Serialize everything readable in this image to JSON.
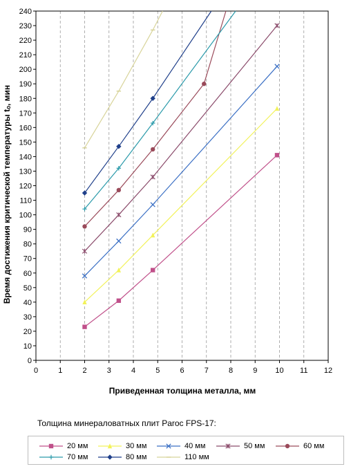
{
  "chart_data": {
    "type": "line",
    "title": "",
    "xlabel": "Приведенная толщина металла, мм",
    "ylabel": "Время достижения критической температуры tₒ, мин",
    "xlim": [
      0,
      12
    ],
    "ylim": [
      0,
      240
    ],
    "x_ticks": [
      0,
      1,
      2,
      3,
      4,
      5,
      6,
      7,
      8,
      9,
      10,
      11,
      12
    ],
    "y_ticks": [
      0,
      10,
      20,
      30,
      40,
      50,
      60,
      70,
      80,
      90,
      100,
      110,
      120,
      130,
      140,
      150,
      160,
      170,
      180,
      190,
      200,
      210,
      220,
      230,
      240
    ],
    "grid": "vertical dashed",
    "legend_position": "bottom",
    "series": [
      {
        "name": "20 мм",
        "color": "#c0508a",
        "marker": "square",
        "x": [
          2,
          3.4,
          4.8,
          9.9
        ],
        "y": [
          23,
          41,
          62,
          141
        ]
      },
      {
        "name": "30 мм",
        "color": "#f2f25a",
        "marker": "triangle",
        "x": [
          2,
          3.4,
          4.8,
          9.9
        ],
        "y": [
          40,
          62,
          86,
          173
        ]
      },
      {
        "name": "40 мм",
        "color": "#3a6fc4",
        "marker": "x",
        "x": [
          2,
          3.4,
          4.8,
          9.9
        ],
        "y": [
          58,
          82,
          107,
          202
        ]
      },
      {
        "name": "50 мм",
        "color": "#8a4a6a",
        "marker": "star",
        "x": [
          2,
          3.4,
          4.8,
          9.9
        ],
        "y": [
          75,
          100,
          126,
          230
        ]
      },
      {
        "name": "60 мм",
        "color": "#9a4a5a",
        "marker": "circle",
        "x": [
          2,
          3.4,
          4.8,
          6.9
        ],
        "y": [
          92,
          117,
          145,
          190
        ],
        "line_end": [
          7.8,
          240
        ]
      },
      {
        "name": "70 мм",
        "color": "#2a9aaa",
        "marker": "plus",
        "x": [
          2,
          3.4,
          4.8
        ],
        "y": [
          104,
          132,
          163
        ],
        "line_end": [
          8.2,
          240
        ]
      },
      {
        "name": "80 мм",
        "color": "#1f3f8a",
        "marker": "diamond",
        "x": [
          2,
          3.4,
          4.8
        ],
        "y": [
          115,
          147,
          180
        ],
        "line_end": [
          7.2,
          240
        ]
      },
      {
        "name": "110 мм",
        "color": "#d8d49a",
        "marker": "dash",
        "x": [
          2,
          3.4,
          4.8
        ],
        "y": [
          146,
          185,
          227
        ],
        "line_end": [
          5.2,
          240
        ]
      }
    ]
  },
  "caption": "Толщина минераловатных плит Paroc FPS-17:"
}
